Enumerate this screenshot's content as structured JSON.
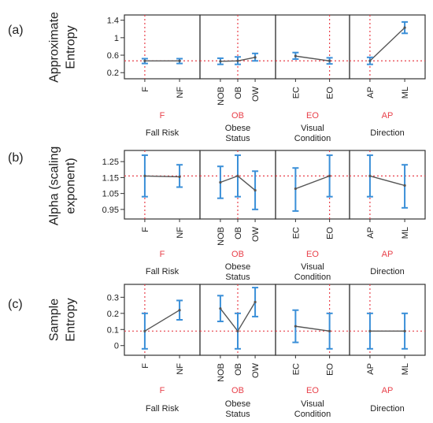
{
  "colors": {
    "point_line": "#555555",
    "error_bar": "#3a8fd8",
    "reference": "#e8404a",
    "frame": "#333333",
    "factor_name": "#e8404a",
    "text": "#222222"
  },
  "rows": [
    {
      "label": "(a)",
      "ylabel_lines": [
        "Approximate",
        "Entropy"
      ],
      "yticks": [
        "1.4",
        "1",
        "0.6",
        "0.2"
      ]
    },
    {
      "label": "(b)",
      "ylabel_lines": [
        "Alpha (scaling",
        "exponent)"
      ],
      "yticks": [
        "1.25",
        "1.15",
        "1.05",
        "0.95"
      ]
    },
    {
      "label": "(c)",
      "ylabel_lines": [
        "Sample",
        "Entropy"
      ],
      "yticks": [
        "0.3",
        "0.2",
        "0.1",
        "0"
      ]
    }
  ],
  "factors": [
    {
      "ref": "F",
      "name": "Fall Risk",
      "name2": "",
      "levels": [
        "F",
        "NF"
      ]
    },
    {
      "ref": "OB",
      "name": "Obese",
      "name2": "Status",
      "levels": [
        "NOB",
        "OB",
        "OW"
      ]
    },
    {
      "ref": "EO",
      "name": "Visual",
      "name2": "Condition",
      "levels": [
        "EC",
        "EO"
      ]
    },
    {
      "ref": "AP",
      "name": "",
      "name2": "Direction",
      "levels": [
        "AP",
        "ML"
      ]
    }
  ],
  "chart_data": [
    {
      "type": "line",
      "panel_label": "(a)",
      "ylabel": "Approximate Entropy",
      "yticks": [
        1.4,
        1,
        0.6,
        0.2
      ],
      "ylim": [
        0.06,
        1.52
      ],
      "reference_y": 0.47,
      "panels": [
        {
          "factor": "Fall Risk",
          "x": [
            "F",
            "NF"
          ],
          "mean": [
            0.47,
            0.47
          ],
          "lower": [
            0.41,
            0.41
          ],
          "upper": [
            0.52,
            0.52
          ]
        },
        {
          "factor": "Obese Status",
          "x": [
            "NOB",
            "OB",
            "OW"
          ],
          "mean": [
            0.46,
            0.47,
            0.55
          ],
          "lower": [
            0.39,
            0.39,
            0.47
          ],
          "upper": [
            0.53,
            0.56,
            0.64
          ]
        },
        {
          "factor": "Visual Condition",
          "x": [
            "EC",
            "EO"
          ],
          "mean": [
            0.58,
            0.47
          ],
          "lower": [
            0.51,
            0.4
          ],
          "upper": [
            0.66,
            0.54
          ]
        },
        {
          "factor": "Direction",
          "x": [
            "AP",
            "ML"
          ],
          "mean": [
            0.47,
            1.23
          ],
          "lower": [
            0.39,
            1.1
          ],
          "upper": [
            0.55,
            1.36
          ]
        }
      ]
    },
    {
      "type": "line",
      "panel_label": "(b)",
      "ylabel": "Alpha (scaling exponent)",
      "yticks": [
        1.25,
        1.15,
        1.05,
        0.95
      ],
      "ylim": [
        0.89,
        1.32
      ],
      "reference_y": 1.16,
      "panels": [
        {
          "factor": "Fall Risk",
          "x": [
            "F",
            "NF"
          ],
          "mean": [
            1.16,
            1.155
          ],
          "lower": [
            1.03,
            1.09
          ],
          "upper": [
            1.29,
            1.23
          ]
        },
        {
          "factor": "Obese Status",
          "x": [
            "NOB",
            "OB",
            "OW"
          ],
          "mean": [
            1.12,
            1.16,
            1.07
          ],
          "lower": [
            1.02,
            1.03,
            0.95
          ],
          "upper": [
            1.22,
            1.29,
            1.19
          ]
        },
        {
          "factor": "Visual Condition",
          "x": [
            "EC",
            "EO"
          ],
          "mean": [
            1.08,
            1.16
          ],
          "lower": [
            0.94,
            1.03
          ],
          "upper": [
            1.21,
            1.29
          ]
        },
        {
          "factor": "Direction",
          "x": [
            "AP",
            "ML"
          ],
          "mean": [
            1.16,
            1.1
          ],
          "lower": [
            1.03,
            0.96
          ],
          "upper": [
            1.29,
            1.23
          ]
        }
      ]
    },
    {
      "type": "line",
      "panel_label": "(c)",
      "ylabel": "Sample Entropy",
      "yticks": [
        0.3,
        0.2,
        0.1,
        0
      ],
      "ylim": [
        -0.06,
        0.38
      ],
      "reference_y": 0.09,
      "panels": [
        {
          "factor": "Fall Risk",
          "x": [
            "F",
            "NF"
          ],
          "mean": [
            0.09,
            0.22
          ],
          "lower": [
            -0.02,
            0.16
          ],
          "upper": [
            0.2,
            0.28
          ]
        },
        {
          "factor": "Obese Status",
          "x": [
            "NOB",
            "OB",
            "OW"
          ],
          "mean": [
            0.23,
            0.09,
            0.27
          ],
          "lower": [
            0.15,
            -0.02,
            0.18
          ],
          "upper": [
            0.31,
            0.2,
            0.36
          ]
        },
        {
          "factor": "Visual Condition",
          "x": [
            "EC",
            "EO"
          ],
          "mean": [
            0.12,
            0.09
          ],
          "lower": [
            0.02,
            -0.02
          ],
          "upper": [
            0.22,
            0.2
          ]
        },
        {
          "factor": "Direction",
          "x": [
            "AP",
            "ML"
          ],
          "mean": [
            0.09,
            0.09
          ],
          "lower": [
            -0.02,
            -0.02
          ],
          "upper": [
            0.2,
            0.2
          ]
        }
      ]
    }
  ]
}
